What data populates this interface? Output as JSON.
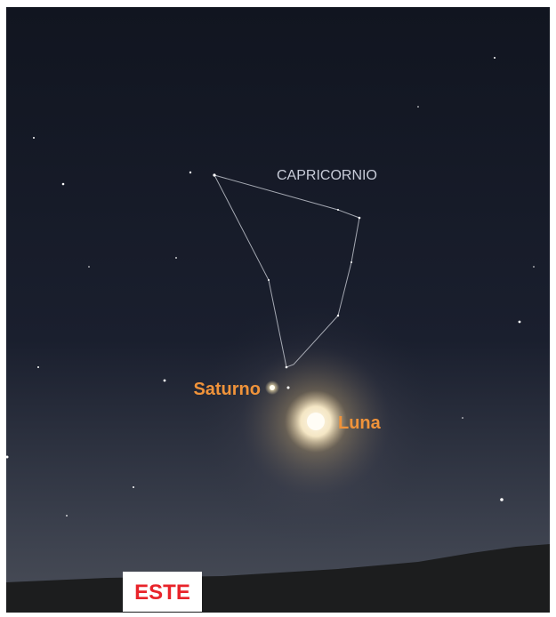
{
  "labels": {
    "constellation": "CAPRICORNIO",
    "saturn": "Saturno",
    "moon": "Luna",
    "direction": "ESTE"
  }
}
